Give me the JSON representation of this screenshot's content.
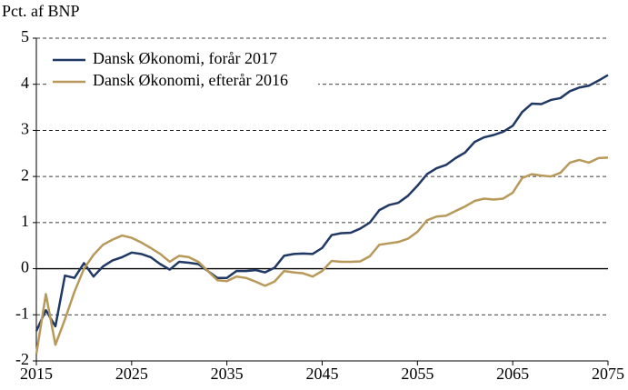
{
  "chart_data": {
    "type": "line",
    "y_axis_label": "Pct. af BNP",
    "x": [
      2015,
      2016,
      2017,
      2018,
      2019,
      2020,
      2021,
      2022,
      2023,
      2024,
      2025,
      2026,
      2027,
      2028,
      2029,
      2030,
      2031,
      2032,
      2033,
      2034,
      2035,
      2036,
      2037,
      2038,
      2039,
      2040,
      2041,
      2042,
      2043,
      2044,
      2045,
      2046,
      2047,
      2048,
      2049,
      2050,
      2051,
      2052,
      2053,
      2054,
      2055,
      2056,
      2057,
      2058,
      2059,
      2060,
      2061,
      2062,
      2063,
      2064,
      2065,
      2066,
      2067,
      2068,
      2069,
      2070,
      2071,
      2072,
      2073,
      2074,
      2075
    ],
    "series": [
      {
        "name": "Dansk Økonomi, forår 2017",
        "color": "#203864",
        "values": [
          -1.35,
          -0.9,
          -1.25,
          -0.15,
          -0.2,
          0.12,
          -0.17,
          0.05,
          0.18,
          0.25,
          0.35,
          0.32,
          0.25,
          0.1,
          -0.02,
          0.15,
          0.13,
          0.1,
          -0.05,
          -0.2,
          -0.2,
          -0.05,
          -0.05,
          -0.03,
          -0.08,
          0.02,
          0.28,
          0.32,
          0.33,
          0.32,
          0.45,
          0.73,
          0.77,
          0.78,
          0.87,
          1.0,
          1.27,
          1.38,
          1.43,
          1.58,
          1.8,
          2.05,
          2.18,
          2.25,
          2.4,
          2.52,
          2.75,
          2.85,
          2.9,
          2.97,
          3.1,
          3.4,
          3.58,
          3.57,
          3.66,
          3.7,
          3.85,
          3.93,
          3.97,
          4.08,
          4.2
        ]
      },
      {
        "name": "Dansk Økonomi, efterår 2016",
        "color": "#b8995a",
        "values": [
          -1.85,
          -0.55,
          -1.65,
          -1.1,
          -0.5,
          0.0,
          0.3,
          0.52,
          0.63,
          0.72,
          0.67,
          0.57,
          0.45,
          0.32,
          0.15,
          0.28,
          0.25,
          0.15,
          -0.05,
          -0.25,
          -0.27,
          -0.17,
          -0.2,
          -0.28,
          -0.37,
          -0.28,
          -0.05,
          -0.08,
          -0.1,
          -0.17,
          -0.05,
          0.17,
          0.15,
          0.15,
          0.16,
          0.27,
          0.52,
          0.55,
          0.58,
          0.65,
          0.8,
          1.05,
          1.13,
          1.15,
          1.25,
          1.35,
          1.47,
          1.52,
          1.5,
          1.52,
          1.65,
          1.97,
          2.05,
          2.02,
          2.0,
          2.08,
          2.3,
          2.36,
          2.3,
          2.4,
          2.41
        ]
      }
    ],
    "xlim": [
      2015,
      2075
    ],
    "xticks": [
      2015,
      2025,
      2035,
      2045,
      2055,
      2065,
      2075
    ],
    "ylim": [
      -2,
      5
    ],
    "yticks": [
      -2,
      -1,
      0,
      1,
      2,
      3,
      4,
      5
    ],
    "grid": true,
    "legend_position": "upper left"
  }
}
